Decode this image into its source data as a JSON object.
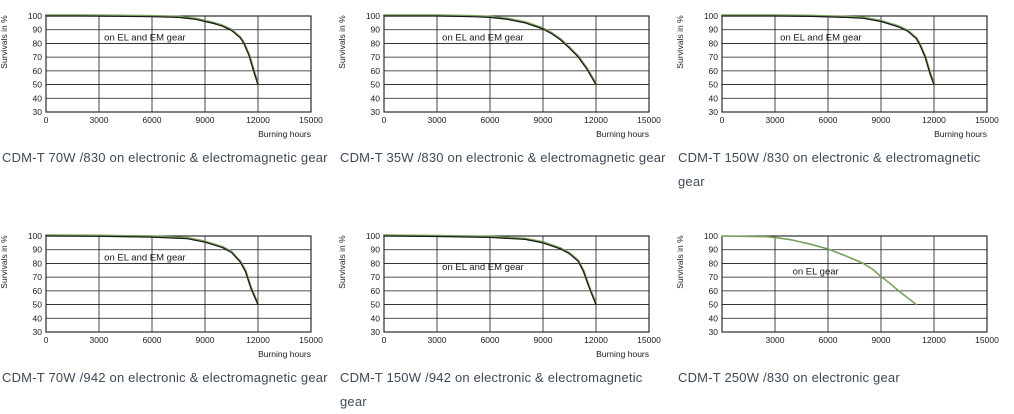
{
  "page": {
    "background": "#ffffff"
  },
  "colors": {
    "el_gear_green": "#79a05c",
    "em_gear_black": "#1a1a1a",
    "grid_line": "#1a1a1a",
    "caption_text": "#3e4a57"
  },
  "chart_data": [
    {
      "type": "line",
      "title": "CDM-T 70W /830 on electronic & electromagnetic gear",
      "xlabel": "Burning hours",
      "ylabel": "Survivals in %",
      "xlim": [
        0,
        15000
      ],
      "ylim": [
        30,
        100
      ],
      "x_ticks": [
        0,
        3000,
        6000,
        9000,
        12000,
        15000
      ],
      "y_ticks": [
        100,
        90,
        80,
        70,
        60,
        50,
        40,
        30
      ],
      "grid": true,
      "annotation": {
        "text": "on EL and EM gear",
        "x": 5600,
        "y": 84.5,
        "color": "#1a1a1a"
      },
      "series": [
        {
          "name": "on EL gear",
          "color": "#79a05c",
          "width": 2.2,
          "dy": -0.7
        },
        {
          "name": "on EM gear",
          "color": "#1a1a1a",
          "width": 1.2,
          "dy": 0
        }
      ],
      "points": [
        [
          0,
          100
        ],
        [
          2000,
          100
        ],
        [
          4000,
          99.8
        ],
        [
          6000,
          99.5
        ],
        [
          7500,
          99
        ],
        [
          8500,
          97.5
        ],
        [
          9000,
          96
        ],
        [
          9500,
          94.5
        ],
        [
          10000,
          92.5
        ],
        [
          10500,
          89.5
        ],
        [
          11000,
          84
        ],
        [
          11200,
          80
        ],
        [
          11500,
          71
        ],
        [
          11800,
          58
        ],
        [
          12000,
          50
        ]
      ]
    },
    {
      "type": "line",
      "title": "CDM-T 35W /830 on electronic & electromagnetic gear",
      "xlabel": "Burning hours",
      "ylabel": "Survivals in %",
      "xlim": [
        0,
        15000
      ],
      "ylim": [
        30,
        100
      ],
      "x_ticks": [
        0,
        3000,
        6000,
        9000,
        12000,
        15000
      ],
      "y_ticks": [
        100,
        90,
        80,
        70,
        60,
        50,
        40,
        30
      ],
      "grid": true,
      "annotation": {
        "text": "on EL and EM gear",
        "x": 5600,
        "y": 84.5,
        "color": "#1a1a1a"
      },
      "series": [
        {
          "name": "on EL gear",
          "color": "#79a05c",
          "width": 2.2,
          "dy": -0.7
        },
        {
          "name": "on EM gear",
          "color": "#1a1a1a",
          "width": 1.2,
          "dy": 0
        }
      ],
      "points": [
        [
          0,
          100
        ],
        [
          3000,
          100
        ],
        [
          5000,
          99.5
        ],
        [
          6000,
          99
        ],
        [
          7000,
          97.5
        ],
        [
          8000,
          95
        ],
        [
          9000,
          90.5
        ],
        [
          9500,
          87
        ],
        [
          10000,
          82.5
        ],
        [
          10500,
          76.5
        ],
        [
          11000,
          70
        ],
        [
          11500,
          61
        ],
        [
          12000,
          50
        ]
      ]
    },
    {
      "type": "line",
      "title": "CDM-T 150W /830 on electronic & electromagnetic gear",
      "xlabel": "Burning hours",
      "ylabel": "Survivals in %",
      "xlim": [
        0,
        15000
      ],
      "ylim": [
        30,
        100
      ],
      "x_ticks": [
        0,
        3000,
        6000,
        9000,
        12000,
        15000
      ],
      "y_ticks": [
        100,
        90,
        80,
        70,
        60,
        50,
        40,
        30
      ],
      "grid": true,
      "annotation": {
        "text": "on EL and EM gear",
        "x": 5600,
        "y": 84.5,
        "color": "#1a1a1a"
      },
      "series": [
        {
          "name": "on EL gear",
          "color": "#79a05c",
          "width": 2.2,
          "dy": -0.7
        },
        {
          "name": "on EM gear",
          "color": "#1a1a1a",
          "width": 1.2,
          "dy": 0
        }
      ],
      "points": [
        [
          0,
          100
        ],
        [
          3000,
          100
        ],
        [
          5000,
          99.7
        ],
        [
          7000,
          99
        ],
        [
          8000,
          98.3
        ],
        [
          9000,
          96
        ],
        [
          10000,
          92
        ],
        [
          10500,
          89
        ],
        [
          11000,
          83.5
        ],
        [
          11200,
          79
        ],
        [
          11500,
          70
        ],
        [
          11800,
          57
        ],
        [
          12000,
          50
        ]
      ]
    },
    {
      "type": "line",
      "title": "CDM-T 70W /942 on electronic & electromagnetic gear",
      "xlabel": "Burning hours",
      "ylabel": "Survivals in %",
      "xlim": [
        0,
        15000
      ],
      "ylim": [
        30,
        100
      ],
      "x_ticks": [
        0,
        3000,
        6000,
        9000,
        12000,
        15000
      ],
      "y_ticks": [
        100,
        90,
        80,
        70,
        60,
        50,
        40,
        30
      ],
      "grid": true,
      "annotation": {
        "text": "on EL and EM gear",
        "x": 5600,
        "y": 84.5,
        "color": "#1a1a1a"
      },
      "series": [
        {
          "name": "on EL gear",
          "color": "#79a05c",
          "width": 2.2,
          "dy": -0.7
        },
        {
          "name": "on EM gear",
          "color": "#1a1a1a",
          "width": 1.2,
          "dy": 0
        }
      ],
      "points": [
        [
          0,
          100
        ],
        [
          3000,
          99.8
        ],
        [
          6000,
          99.2
        ],
        [
          8000,
          98
        ],
        [
          9000,
          95.5
        ],
        [
          10000,
          91.5
        ],
        [
          10500,
          88
        ],
        [
          11000,
          81
        ],
        [
          11300,
          74
        ],
        [
          11600,
          62
        ],
        [
          12000,
          50
        ]
      ]
    },
    {
      "type": "line",
      "title": "CDM-T 150W /942 on electronic & electromagnetic gear",
      "xlabel": "Burning hours",
      "ylabel": "Survivals in %",
      "xlim": [
        0,
        15000
      ],
      "ylim": [
        30,
        100
      ],
      "x_ticks": [
        0,
        3000,
        6000,
        9000,
        12000,
        15000
      ],
      "y_ticks": [
        100,
        90,
        80,
        70,
        60,
        50,
        40,
        30
      ],
      "grid": true,
      "annotation": {
        "text": "on EL and EM gear",
        "x": 5600,
        "y": 77.5,
        "color": "#1a1a1a"
      },
      "series": [
        {
          "name": "on EL gear",
          "color": "#79a05c",
          "width": 2.2,
          "dy": -0.7
        },
        {
          "name": "on EM gear",
          "color": "#1a1a1a",
          "width": 1.2,
          "dy": 0
        }
      ],
      "points": [
        [
          0,
          100
        ],
        [
          3000,
          99.6
        ],
        [
          6000,
          99
        ],
        [
          8000,
          97.5
        ],
        [
          9000,
          95
        ],
        [
          10000,
          90.5
        ],
        [
          10500,
          87
        ],
        [
          11000,
          81.5
        ],
        [
          11300,
          74
        ],
        [
          11600,
          63
        ],
        [
          12000,
          50
        ]
      ]
    },
    {
      "type": "line",
      "title": "CDM-T 250W /830 on electronic gear",
      "xlabel": "",
      "ylabel": "Survivals in %",
      "xlim": [
        0,
        15000
      ],
      "ylim": [
        30,
        100
      ],
      "x_ticks": [
        3000,
        6000,
        9000,
        12000,
        15000
      ],
      "y_ticks": [
        100,
        90,
        80,
        70,
        60,
        50,
        40,
        30
      ],
      "grid": true,
      "annotation": {
        "text": "on EL gear",
        "x": 5300,
        "y": 74,
        "color": "#79a05c"
      },
      "series": [
        {
          "name": "on EL gear",
          "color": "#79a05c",
          "width": 1.6,
          "dy": 0
        }
      ],
      "points": [
        [
          0,
          100
        ],
        [
          2500,
          99.5
        ],
        [
          3000,
          99
        ],
        [
          4000,
          97
        ],
        [
          5000,
          94
        ],
        [
          6000,
          90.5
        ],
        [
          7000,
          85.5
        ],
        [
          8000,
          80
        ],
        [
          8500,
          76
        ],
        [
          9000,
          70.5
        ],
        [
          9500,
          65.5
        ],
        [
          10000,
          60
        ],
        [
          10500,
          55
        ],
        [
          11000,
          50
        ]
      ]
    }
  ]
}
